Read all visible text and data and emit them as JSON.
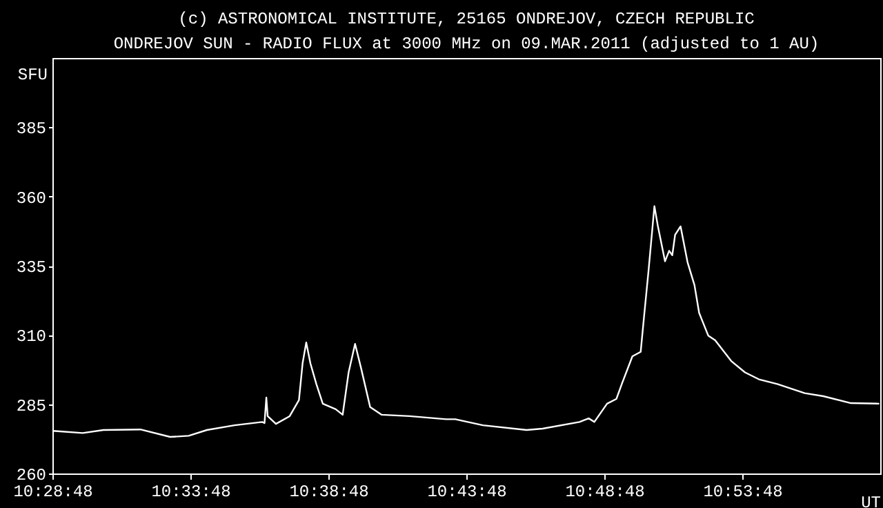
{
  "chart_data": {
    "type": "line",
    "title": "(c) ASTRONOMICAL INSTITUTE, 25165 ONDREJOV, CZECH REPUBLIC",
    "subtitle": "ONDREJOV SUN - RADIO FLUX at 3000 MHz on 09.MAR.2011 (adjusted to 1 AU)",
    "xlabel": "UT",
    "ylabel": "SFU",
    "x": [
      10.4803,
      10.4983,
      10.5108,
      10.5331,
      10.5511,
      10.5623,
      10.5733,
      10.59,
      10.6067,
      10.6081,
      10.6092,
      10.61,
      10.615,
      10.6233,
      10.6289,
      10.6311,
      10.6333,
      10.6358,
      10.6394,
      10.6433,
      10.6511,
      10.6553,
      10.6589,
      10.6628,
      10.6664,
      10.6719,
      10.6789,
      10.6956,
      10.7178,
      10.7233,
      10.74,
      10.7664,
      10.7761,
      10.7983,
      10.8039,
      10.8073,
      10.815,
      10.8206,
      10.8239,
      10.8303,
      10.8353,
      10.8373,
      10.84,
      10.8436,
      10.8456,
      10.85,
      10.8525,
      10.8544,
      10.8561,
      10.8594,
      10.8636,
      10.8678,
      10.8706,
      10.8761,
      10.8803,
      10.89,
      10.8983,
      10.9067,
      10.9178,
      10.9344,
      10.9456,
      10.9623,
      10.9794
    ],
    "series": [
      {
        "color": "#ffffff",
        "values": [
          275.4,
          274.6,
          275.7,
          275.9,
          273.2,
          273.6,
          275.7,
          277.4,
          278.6,
          278.2,
          287.4,
          280.7,
          277.9,
          280.7,
          286.5,
          299.8,
          307.3,
          299.8,
          292.3,
          285.2,
          283.2,
          281.2,
          296.5,
          306.8,
          298.1,
          284.0,
          281.2,
          280.7,
          279.6,
          279.6,
          277.4,
          275.7,
          276.2,
          278.6,
          279.9,
          278.6,
          285.2,
          286.9,
          292.3,
          302.3,
          303.9,
          316.4,
          332.9,
          356.5,
          349.6,
          336.6,
          340.4,
          338.8,
          346.2,
          349.2,
          336.3,
          328.0,
          318.0,
          309.8,
          308.1,
          300.6,
          296.5,
          294.0,
          292.3,
          289.0,
          287.9,
          285.4,
          285.2
        ]
      }
    ],
    "xlim": [
      10.48,
      10.98
    ],
    "xticks": [
      {
        "value": 10.48,
        "label": "10:28:48"
      },
      {
        "value": 10.563333,
        "label": "10:33:48"
      },
      {
        "value": 10.646667,
        "label": "10:38:48"
      },
      {
        "value": 10.73,
        "label": "10:43:48"
      },
      {
        "value": 10.813333,
        "label": "10:48:48"
      },
      {
        "value": 10.896667,
        "label": "10:53:48"
      }
    ],
    "ylim": [
      260,
      410
    ],
    "yticks": [
      260,
      285,
      310,
      335,
      360,
      385
    ],
    "grid": false,
    "legend": false,
    "marker": "none",
    "line_style": "solid"
  }
}
